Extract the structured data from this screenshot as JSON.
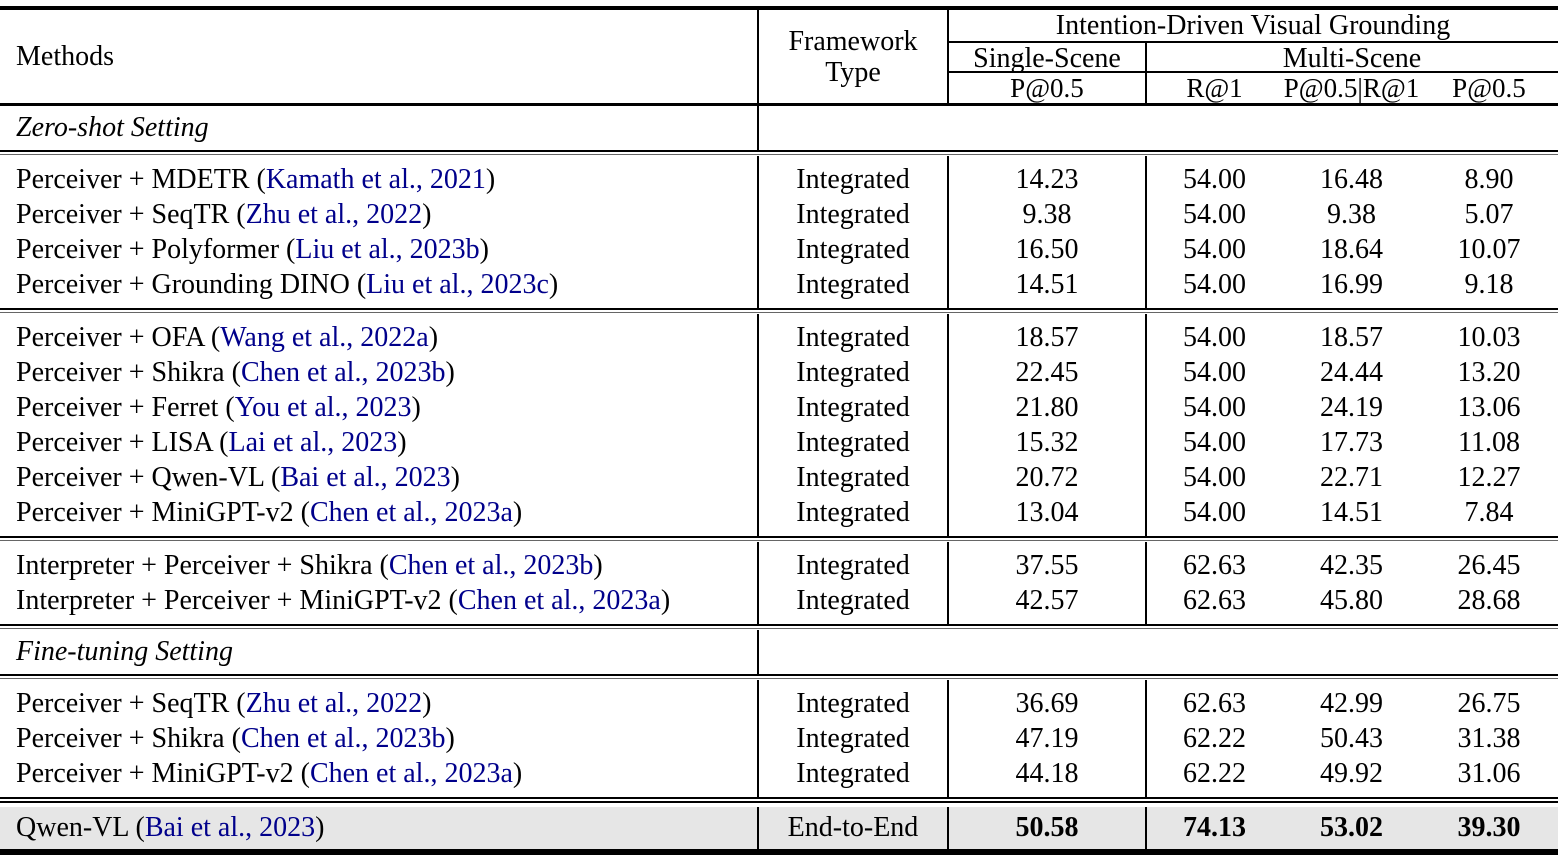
{
  "colors": {
    "citation": "#00008B",
    "highlight_row": "#e6e6e6",
    "rule": "#000000"
  },
  "table": {
    "headers": {
      "methods": "Methods",
      "framework_type": "Framework Type",
      "group_title": "Intention-Driven Visual Grounding",
      "single_scene": "Single-Scene",
      "multi_scene": "Multi-Scene",
      "single_scene_metric": "P@0.5",
      "multi_scene_metrics": [
        "R@1",
        "P@0.5|R@1",
        "P@0.5"
      ]
    },
    "sections": [
      {
        "title": "Zero-shot Setting",
        "blocks": [
          [
            {
              "method": "Perceiver + MDETR",
              "cite": "Kamath et al., 2021",
              "framework": "Integrated",
              "values": [
                "14.23",
                "54.00",
                "16.48",
                "8.90"
              ]
            },
            {
              "method": "Perceiver + SeqTR",
              "cite": "Zhu et al., 2022",
              "framework": "Integrated",
              "values": [
                "9.38",
                "54.00",
                "9.38",
                "5.07"
              ]
            },
            {
              "method": "Perceiver + Polyformer",
              "cite": "Liu et al., 2023b",
              "framework": "Integrated",
              "values": [
                "16.50",
                "54.00",
                "18.64",
                "10.07"
              ]
            },
            {
              "method": "Perceiver + Grounding DINO",
              "cite": "Liu et al., 2023c",
              "framework": "Integrated",
              "values": [
                "14.51",
                "54.00",
                "16.99",
                "9.18"
              ]
            }
          ],
          [
            {
              "method": "Perceiver + OFA",
              "cite": "Wang et al., 2022a",
              "framework": "Integrated",
              "values": [
                "18.57",
                "54.00",
                "18.57",
                "10.03"
              ]
            },
            {
              "method": "Perceiver + Shikra",
              "cite": "Chen et al., 2023b",
              "framework": "Integrated",
              "values": [
                "22.45",
                "54.00",
                "24.44",
                "13.20"
              ]
            },
            {
              "method": "Perceiver + Ferret",
              "cite": "You et al., 2023",
              "framework": "Integrated",
              "values": [
                "21.80",
                "54.00",
                "24.19",
                "13.06"
              ]
            },
            {
              "method": "Perceiver + LISA",
              "cite": "Lai et al., 2023",
              "framework": "Integrated",
              "values": [
                "15.32",
                "54.00",
                "17.73",
                "11.08"
              ]
            },
            {
              "method": "Perceiver + Qwen-VL",
              "cite": "Bai et al., 2023",
              "framework": "Integrated",
              "values": [
                "20.72",
                "54.00",
                "22.71",
                "12.27"
              ]
            },
            {
              "method": "Perceiver + MiniGPT-v2",
              "cite": "Chen et al., 2023a",
              "framework": "Integrated",
              "values": [
                "13.04",
                "54.00",
                "14.51",
                "7.84"
              ]
            }
          ],
          [
            {
              "method": "Interpreter + Perceiver + Shikra",
              "cite": "Chen et al., 2023b",
              "framework": "Integrated",
              "values": [
                "37.55",
                "62.63",
                "42.35",
                "26.45"
              ]
            },
            {
              "method": "Interpreter + Perceiver + MiniGPT-v2",
              "cite": "Chen et al., 2023a",
              "framework": "Integrated",
              "values": [
                "42.57",
                "62.63",
                "45.80",
                "28.68"
              ]
            }
          ]
        ]
      },
      {
        "title": "Fine-tuning Setting",
        "blocks": [
          [
            {
              "method": "Perceiver + SeqTR",
              "cite": "Zhu et al., 2022",
              "framework": "Integrated",
              "values": [
                "36.69",
                "62.63",
                "42.99",
                "26.75"
              ]
            },
            {
              "method": "Perceiver + Shikra",
              "cite": "Chen et al., 2023b",
              "framework": "Integrated",
              "values": [
                "47.19",
                "62.22",
                "50.43",
                "31.38"
              ]
            },
            {
              "method": "Perceiver + MiniGPT-v2",
              "cite": "Chen et al., 2023a",
              "framework": "Integrated",
              "values": [
                "44.18",
                "62.22",
                "49.92",
                "31.06"
              ]
            }
          ]
        ]
      }
    ],
    "final": [
      {
        "method": "Qwen-VL",
        "cite": "Bai et al., 2023",
        "framework": "End-to-End",
        "values": [
          "50.58",
          "74.13",
          "53.02",
          "39.30"
        ],
        "bold": true
      }
    ]
  }
}
